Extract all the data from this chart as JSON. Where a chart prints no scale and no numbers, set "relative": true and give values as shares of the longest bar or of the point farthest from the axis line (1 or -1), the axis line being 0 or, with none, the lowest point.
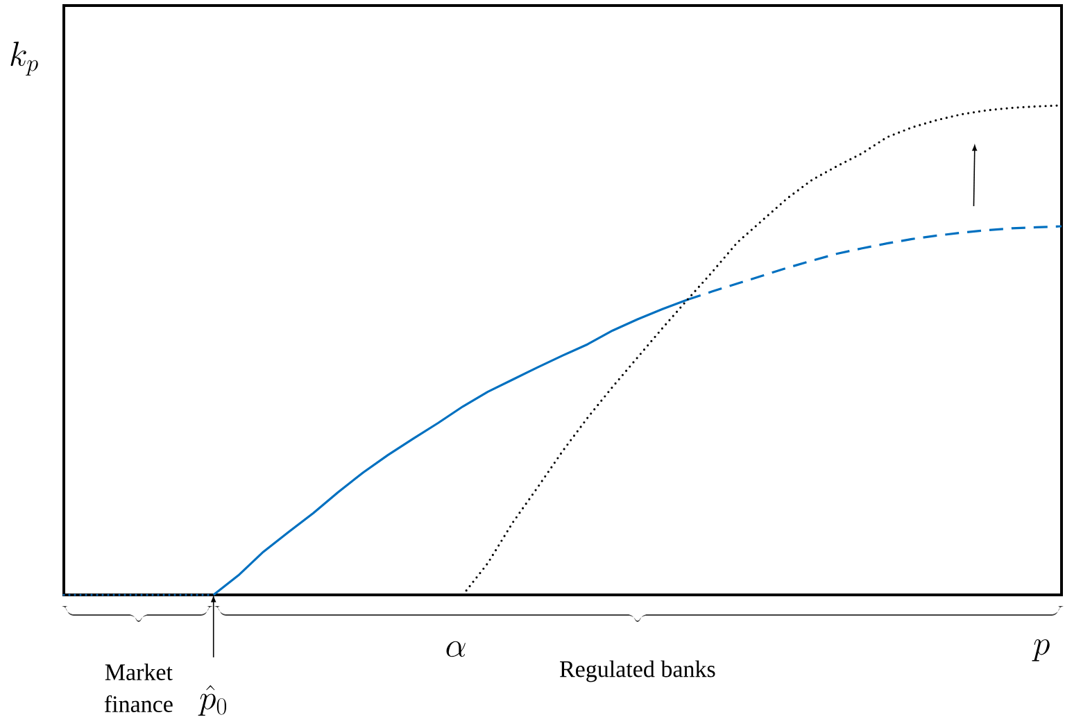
{
  "chart_data": {
    "type": "line",
    "relative": true,
    "xlabel": "p",
    "ylabel": "k_p",
    "categories": [
      null,
      null,
      null,
      null,
      null,
      null,
      null,
      null,
      null,
      null,
      null,
      null,
      null,
      null,
      null,
      null,
      null,
      null,
      null,
      null,
      null,
      null,
      null,
      null,
      null,
      null,
      null,
      null,
      null,
      null,
      null,
      null,
      null,
      null,
      null,
      null,
      null,
      null,
      null,
      null,
      null
    ],
    "series": [
      {
        "color": "#0070c0",
        "line_style": "dotted",
        "values": [
          0,
          0,
          0,
          0,
          0,
          0,
          0,
          null,
          null,
          null,
          null,
          null,
          null,
          null,
          null,
          null,
          null,
          null,
          null,
          null,
          null,
          null,
          null,
          null,
          null,
          null,
          null,
          null,
          null,
          null,
          null,
          null,
          null,
          null,
          null,
          null,
          null,
          null,
          null,
          null,
          null
        ]
      },
      {
        "color": "#0070c0",
        "line_style": "solid",
        "values": [
          null,
          null,
          null,
          null,
          null,
          null,
          0,
          0.04,
          0.088,
          0.128,
          0.167,
          0.21,
          0.25,
          0.286,
          0.319,
          0.351,
          0.385,
          0.415,
          0.44,
          0.465,
          0.489,
          0.512,
          0.54,
          0.563,
          0.584,
          0.603,
          null,
          null,
          null,
          null,
          null,
          null,
          null,
          null,
          null,
          null,
          null,
          null,
          null,
          null,
          null
        ]
      },
      {
        "color": "#0070c0",
        "line_style": "dashed",
        "values": [
          null,
          null,
          null,
          null,
          null,
          null,
          null,
          null,
          null,
          null,
          null,
          null,
          null,
          null,
          null,
          null,
          null,
          null,
          null,
          null,
          null,
          null,
          null,
          null,
          null,
          0.603,
          0.62,
          0.636,
          0.652,
          0.668,
          0.683,
          0.697,
          0.708,
          0.718,
          0.727,
          0.734,
          0.74,
          0.745,
          0.749,
          0.751,
          0.753
        ]
      },
      {
        "color": "#000000",
        "line_style": "dotted",
        "values": [
          null,
          null,
          null,
          null,
          null,
          null,
          null,
          null,
          null,
          null,
          null,
          null,
          null,
          null,
          null,
          null,
          0,
          0.065,
          0.148,
          0.22,
          0.294,
          0.362,
          0.425,
          0.485,
          0.545,
          0.603,
          0.66,
          0.72,
          0.765,
          0.81,
          0.848,
          0.876,
          0.902,
          0.935,
          0.955,
          0.97,
          0.982,
          0.99,
          0.995,
          0.998,
          1.0
        ]
      }
    ],
    "annotations": [
      "\\hat{p}_0",
      "\\alpha",
      "Market finance",
      "Regulated banks"
    ]
  }
}
